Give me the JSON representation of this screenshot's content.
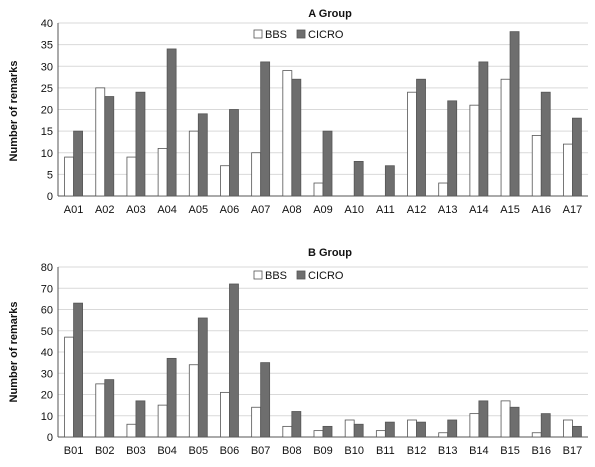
{
  "chart_data": [
    {
      "type": "bar",
      "title": "A Group",
      "xlabel": "",
      "ylabel": "Number of remarks",
      "ylim": [
        0,
        40
      ],
      "yticks": [
        0,
        5,
        10,
        15,
        20,
        25,
        30,
        35,
        40
      ],
      "grid": true,
      "legend": "top-center",
      "categories": [
        "A01",
        "A02",
        "A03",
        "A04",
        "A05",
        "A06",
        "A07",
        "A08",
        "A09",
        "A10",
        "A11",
        "A12",
        "A13",
        "A14",
        "A15",
        "A16",
        "A17"
      ],
      "series": [
        {
          "name": "BBS",
          "color": "#ffffff",
          "values": [
            9,
            25,
            9,
            11,
            15,
            7,
            10,
            29,
            3,
            0,
            0,
            24,
            3,
            21,
            27,
            14,
            12
          ]
        },
        {
          "name": "CICRO",
          "color": "#6e6e6e",
          "values": [
            15,
            23,
            24,
            34,
            19,
            20,
            31,
            27,
            15,
            8,
            7,
            27,
            22,
            31,
            38,
            24,
            18
          ]
        }
      ]
    },
    {
      "type": "bar",
      "title": "B Group",
      "xlabel": "",
      "ylabel": "Number of remarks",
      "ylim": [
        0,
        80
      ],
      "yticks": [
        0,
        10,
        20,
        30,
        40,
        50,
        60,
        70,
        80
      ],
      "grid": true,
      "legend": "top-center",
      "categories": [
        "B01",
        "B02",
        "B03",
        "B04",
        "B05",
        "B06",
        "B07",
        "B08",
        "B09",
        "B10",
        "B11",
        "B12",
        "B13",
        "B14",
        "B15",
        "B16",
        "B17"
      ],
      "series": [
        {
          "name": "BBS",
          "color": "#ffffff",
          "values": [
            47,
            25,
            6,
            15,
            34,
            21,
            14,
            5,
            3,
            8,
            3,
            8,
            2,
            11,
            17,
            2,
            8
          ]
        },
        {
          "name": "CICRO",
          "color": "#6e6e6e",
          "values": [
            63,
            27,
            17,
            37,
            56,
            72,
            35,
            12,
            5,
            6,
            7,
            7,
            8,
            17,
            14,
            11,
            5
          ]
        }
      ]
    }
  ]
}
